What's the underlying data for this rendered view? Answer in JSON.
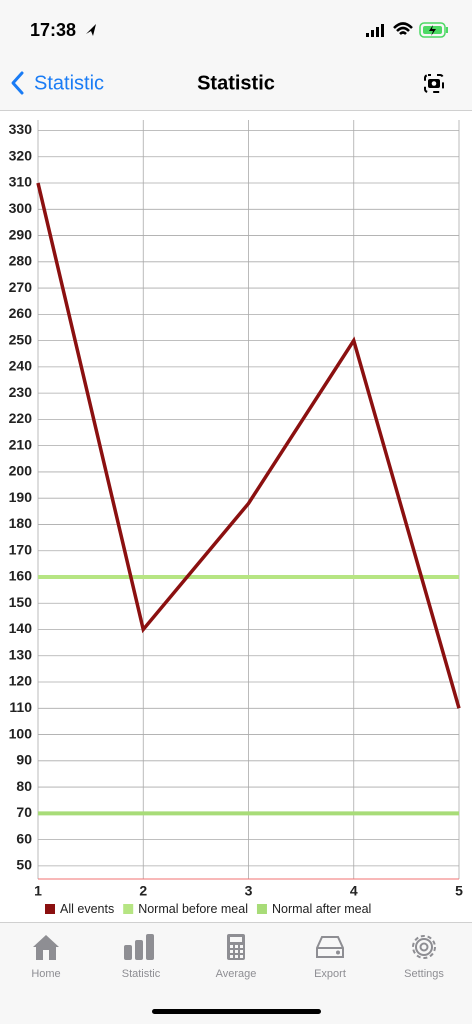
{
  "status_bar": {
    "time": "17:38"
  },
  "nav": {
    "back": "Statistic",
    "title": "Statistic"
  },
  "chart_data": {
    "type": "line",
    "x": [
      1,
      2,
      3,
      4,
      5
    ],
    "xlim": [
      1,
      5
    ],
    "xticks": [
      1,
      2,
      3,
      4,
      5
    ],
    "ylim": [
      45,
      334
    ],
    "yticks": [
      50,
      60,
      70,
      80,
      90,
      100,
      110,
      120,
      130,
      140,
      150,
      160,
      170,
      180,
      190,
      200,
      210,
      220,
      230,
      240,
      250,
      260,
      270,
      280,
      290,
      300,
      310,
      320,
      330
    ],
    "grid": true,
    "series": [
      {
        "name": "All events",
        "color": "#8b1010",
        "values": [
          310,
          140,
          188,
          250,
          110
        ]
      },
      {
        "name": "Normal before meal",
        "color": "#b6e583",
        "values": [
          160,
          160,
          160,
          160,
          160
        ]
      },
      {
        "name": "Normal after meal",
        "color": "#a8dc78",
        "values": [
          70,
          70,
          70,
          70,
          70
        ]
      }
    ]
  },
  "tab_bar": {
    "items": [
      "Home",
      "Statistic",
      "Average",
      "Export",
      "Settings"
    ]
  }
}
